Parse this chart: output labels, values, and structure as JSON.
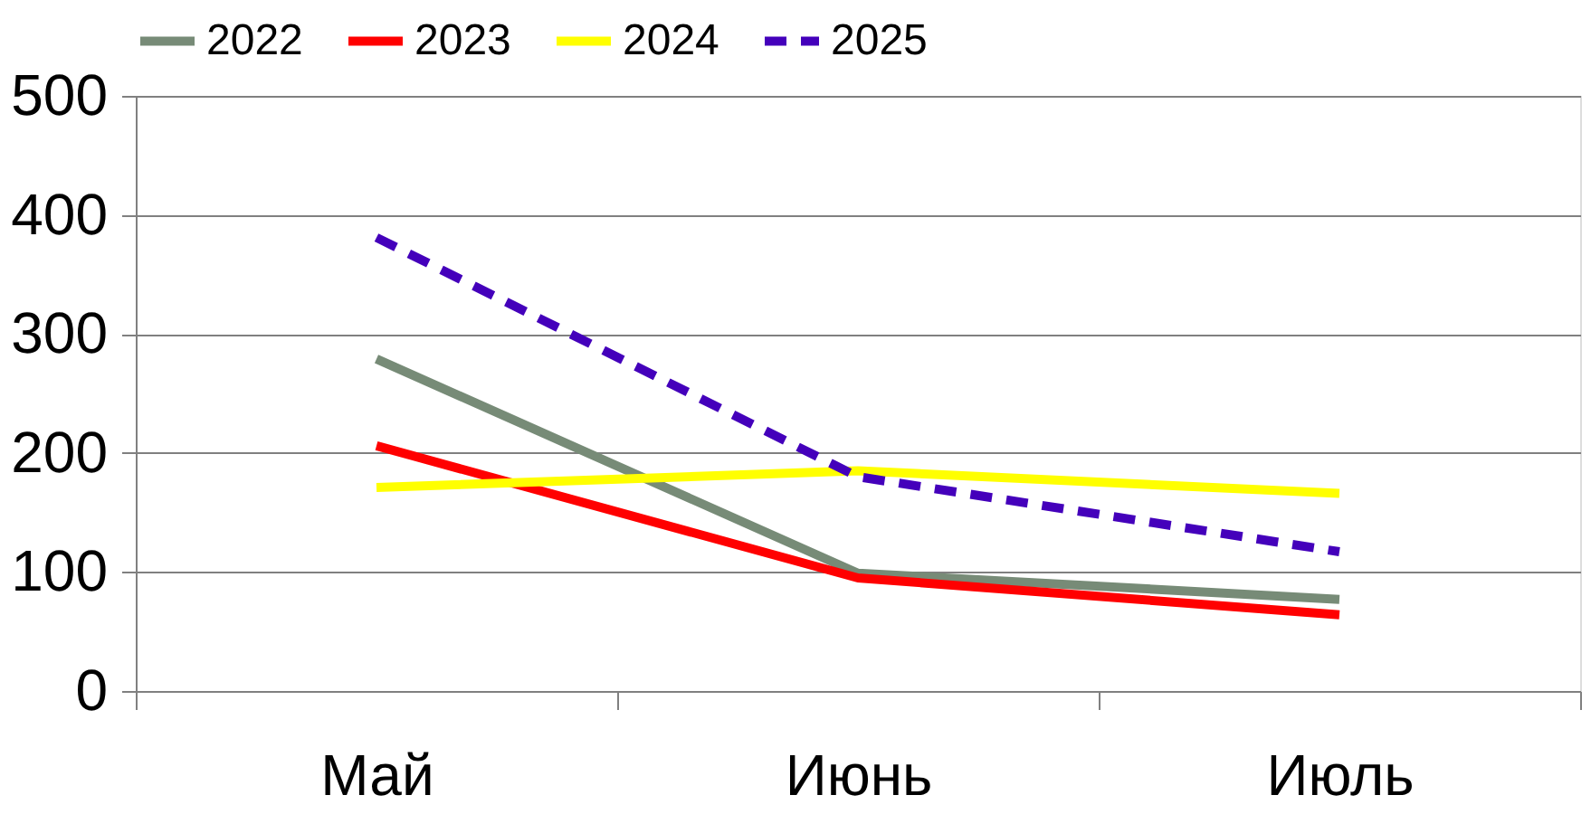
{
  "chart_data": {
    "type": "line",
    "categories": [
      "Май",
      "Июнь",
      "Июль"
    ],
    "series": [
      {
        "name": "2022",
        "color": "#778b77",
        "values": [
          279,
          99,
          77
        ]
      },
      {
        "name": "2023",
        "color": "#ff0000",
        "values": [
          206,
          95,
          64
        ]
      },
      {
        "name": "2024",
        "color": "#ffff00",
        "values": [
          171,
          185,
          166
        ]
      },
      {
        "name": "2025",
        "color": "#4400bb",
        "values": [
          381,
          180,
          117
        ],
        "line_style": "dashed"
      }
    ],
    "ylim": [
      0,
      500
    ],
    "yticks": [
      0,
      100,
      200,
      300,
      400,
      500
    ],
    "grid": "y",
    "legend": "top",
    "marker": "none",
    "line_style": "solid"
  }
}
